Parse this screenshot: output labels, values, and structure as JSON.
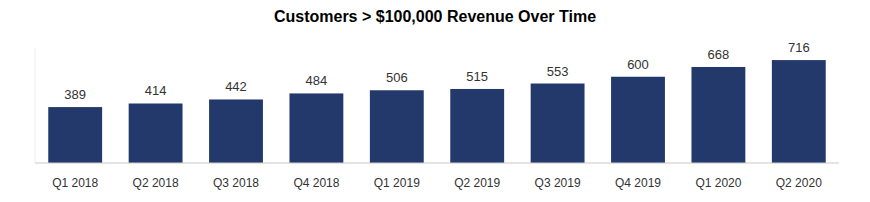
{
  "chart_data": {
    "type": "bar",
    "title": "Customers > $100,000 Revenue Over Time",
    "categories": [
      "Q1 2018",
      "Q2 2018",
      "Q3 2018",
      "Q4 2018",
      "Q1 2019",
      "Q2 2019",
      "Q3 2019",
      "Q4 2019",
      "Q1 2020",
      "Q2 2020"
    ],
    "values": [
      389,
      414,
      442,
      484,
      506,
      515,
      553,
      600,
      668,
      716
    ],
    "color": "#24396b",
    "ylim": [
      0,
      800
    ],
    "data_labels": true,
    "tick_labels": "x",
    "grid": false
  }
}
